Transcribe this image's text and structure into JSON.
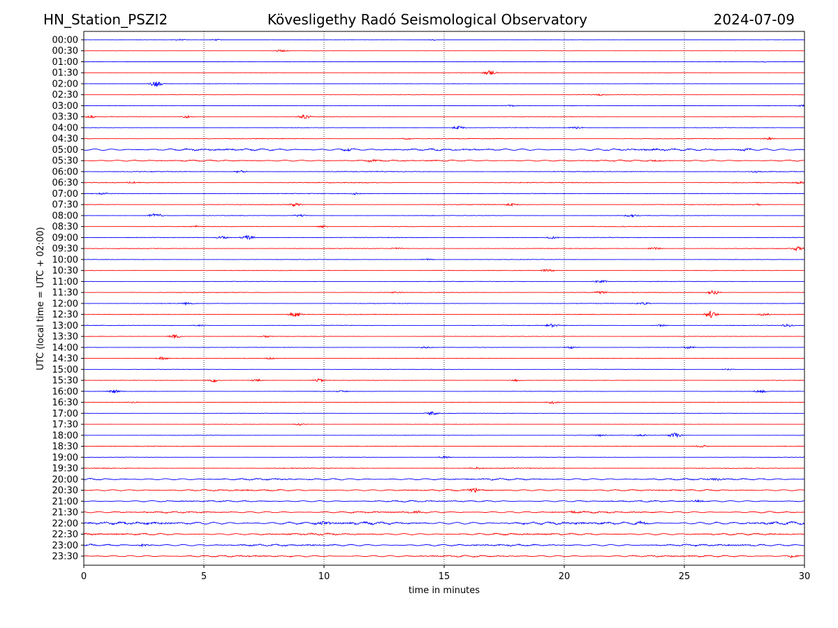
{
  "chart_data": {
    "type": "line",
    "title_left": "HN_Station_PSZI2",
    "title": "Kövesligethy Radó Seismological Observatory",
    "title_right": "2024-07-09",
    "xlabel": "time in minutes",
    "ylabel": "UTC (local time = UTC + 02:00)",
    "xlim": [
      0,
      30
    ],
    "xticks": [
      0,
      5,
      10,
      15,
      20,
      25,
      30
    ],
    "grid": "vertical dotted at x ticks",
    "colors": [
      "#0000ff",
      "#ff0000"
    ],
    "traces": [
      {
        "label": "00:00",
        "noise": 0.25,
        "events": [
          [
            4,
            0.8
          ],
          [
            5.5,
            0.8
          ],
          [
            14.5,
            0.6
          ]
        ]
      },
      {
        "label": "00:30",
        "noise": 0.25,
        "events": [
          [
            8.2,
            1.2
          ]
        ]
      },
      {
        "label": "01:00",
        "noise": 0.3,
        "events": [
          [
            28.2,
            0.8
          ]
        ]
      },
      {
        "label": "01:30",
        "noise": 0.3,
        "events": [
          [
            16.9,
            3
          ]
        ]
      },
      {
        "label": "02:00",
        "noise": 0.3,
        "events": [
          [
            3.0,
            3.5
          ]
        ]
      },
      {
        "label": "02:30",
        "noise": 0.3,
        "events": [
          [
            21.5,
            1
          ]
        ]
      },
      {
        "label": "03:00",
        "noise": 0.35,
        "events": [
          [
            17.8,
            1
          ],
          [
            30,
            1.5
          ]
        ]
      },
      {
        "label": "03:30",
        "noise": 0.4,
        "events": [
          [
            0.3,
            1.5
          ],
          [
            4.3,
            1.5
          ],
          [
            9.2,
            2.5
          ]
        ]
      },
      {
        "label": "04:00",
        "noise": 0.35,
        "events": [
          [
            15.6,
            2
          ],
          [
            20.5,
            1.5
          ]
        ]
      },
      {
        "label": "04:30",
        "noise": 0.5,
        "events": [
          [
            13.5,
            1
          ],
          [
            28.5,
            1.5
          ]
        ]
      },
      {
        "label": "05:00",
        "noise": 1.1,
        "events": [
          [
            11,
            1.5
          ],
          [
            27.5,
            1.5
          ]
        ]
      },
      {
        "label": "05:30",
        "noise": 0.7,
        "events": [
          [
            12,
            1.5
          ],
          [
            23.8,
            1.5
          ]
        ]
      },
      {
        "label": "06:00",
        "noise": 0.6,
        "events": [
          [
            6.5,
            1.5
          ],
          [
            28,
            1.2
          ]
        ]
      },
      {
        "label": "06:30",
        "noise": 0.6,
        "events": [
          [
            2,
            1.5
          ],
          [
            29.8,
            1.5
          ]
        ]
      },
      {
        "label": "07:00",
        "noise": 0.5,
        "events": [
          [
            0.8,
            1.2
          ],
          [
            11.3,
            1.2
          ]
        ]
      },
      {
        "label": "07:30",
        "noise": 0.5,
        "events": [
          [
            8.8,
            2
          ],
          [
            17.8,
            1.5
          ],
          [
            28,
            1.2
          ]
        ]
      },
      {
        "label": "08:00",
        "noise": 0.4,
        "events": [
          [
            3.0,
            3
          ],
          [
            9,
            1.5
          ],
          [
            22.8,
            2
          ]
        ]
      },
      {
        "label": "08:30",
        "noise": 0.45,
        "events": [
          [
            10,
            1.2
          ],
          [
            4.7,
            1
          ]
        ]
      },
      {
        "label": "09:00",
        "noise": 0.5,
        "events": [
          [
            6.8,
            3
          ],
          [
            5.8,
            2
          ],
          [
            19.5,
            1.5
          ]
        ]
      },
      {
        "label": "09:30",
        "noise": 0.45,
        "events": [
          [
            13,
            1.2
          ],
          [
            23.8,
            1.5
          ],
          [
            29.7,
            2.5
          ]
        ]
      },
      {
        "label": "10:00",
        "noise": 0.4,
        "events": [
          [
            14.3,
            1.2
          ]
        ]
      },
      {
        "label": "10:30",
        "noise": 0.4,
        "events": [
          [
            19.3,
            1.8
          ]
        ]
      },
      {
        "label": "11:00",
        "noise": 0.4,
        "events": [
          [
            21.5,
            2
          ]
        ]
      },
      {
        "label": "11:30",
        "noise": 0.45,
        "events": [
          [
            26.2,
            3
          ],
          [
            21.5,
            1.5
          ],
          [
            13,
            1.2
          ]
        ]
      },
      {
        "label": "12:00",
        "noise": 0.45,
        "events": [
          [
            4.3,
            1.5
          ],
          [
            23.3,
            1.5
          ]
        ]
      },
      {
        "label": "12:30",
        "noise": 0.45,
        "events": [
          [
            8.8,
            3.2
          ],
          [
            26.1,
            4
          ],
          [
            28.3,
            1.5
          ]
        ]
      },
      {
        "label": "13:00",
        "noise": 0.45,
        "events": [
          [
            4.8,
            1.2
          ],
          [
            19.5,
            2
          ],
          [
            24,
            1.3
          ],
          [
            29.3,
            1.8
          ]
        ]
      },
      {
        "label": "13:30",
        "noise": 0.35,
        "events": [
          [
            3.8,
            2.5
          ],
          [
            7.6,
            1.2
          ]
        ]
      },
      {
        "label": "14:00",
        "noise": 0.35,
        "events": [
          [
            14.2,
            1.2
          ],
          [
            20.3,
            1.3
          ],
          [
            25.2,
            1.5
          ]
        ]
      },
      {
        "label": "14:30",
        "noise": 0.35,
        "events": [
          [
            3.3,
            2.2
          ],
          [
            7.8,
            1.2
          ]
        ]
      },
      {
        "label": "15:00",
        "noise": 0.35,
        "events": [
          [
            26.8,
            1
          ]
        ]
      },
      {
        "label": "15:30",
        "noise": 0.4,
        "events": [
          [
            5.4,
            2
          ],
          [
            7.2,
            1.5
          ],
          [
            9.8,
            2
          ],
          [
            18,
            1.2
          ]
        ]
      },
      {
        "label": "16:00",
        "noise": 0.35,
        "events": [
          [
            1.3,
            2
          ],
          [
            10.8,
            1.2
          ],
          [
            28.2,
            1.8
          ]
        ]
      },
      {
        "label": "16:30",
        "noise": 0.35,
        "events": [
          [
            19.5,
            1.8
          ],
          [
            2.1,
            1
          ]
        ]
      },
      {
        "label": "17:00",
        "noise": 0.35,
        "events": [
          [
            14.5,
            2.2
          ]
        ]
      },
      {
        "label": "17:30",
        "noise": 0.3,
        "events": [
          [
            9,
            1.2
          ]
        ]
      },
      {
        "label": "18:00",
        "noise": 0.4,
        "events": [
          [
            21.5,
            1.5
          ],
          [
            23.2,
            1.5
          ],
          [
            24.6,
            3
          ]
        ]
      },
      {
        "label": "18:30",
        "noise": 0.45,
        "events": [
          [
            25.7,
            1.8
          ]
        ]
      },
      {
        "label": "19:00",
        "noise": 0.35,
        "events": [
          [
            15,
            1.5
          ]
        ]
      },
      {
        "label": "19:30",
        "noise": 0.6,
        "events": [
          [
            16.3,
            1.2
          ]
        ]
      },
      {
        "label": "20:00",
        "noise": 0.9,
        "events": [
          [
            26.3,
            1.5
          ]
        ]
      },
      {
        "label": "20:30",
        "noise": 0.8,
        "events": [
          [
            16.3,
            3
          ]
        ]
      },
      {
        "label": "21:00",
        "noise": 0.8,
        "events": [
          [
            25.6,
            1.5
          ]
        ]
      },
      {
        "label": "21:30",
        "noise": 0.9,
        "events": [
          [
            20.5,
            1.8
          ],
          [
            13.8,
            1.5
          ]
        ]
      },
      {
        "label": "22:00",
        "noise": 1.4,
        "events": [
          [
            23.2,
            2
          ],
          [
            10,
            1.8
          ]
        ]
      },
      {
        "label": "22:30",
        "noise": 1.0,
        "events": [
          [
            9.8,
            1.5
          ]
        ]
      },
      {
        "label": "23:00",
        "noise": 1.0,
        "events": [
          [
            2.5,
            1.5
          ]
        ]
      },
      {
        "label": "23:30",
        "noise": 0.9,
        "events": [
          [
            29.5,
            1.5
          ]
        ]
      }
    ]
  }
}
